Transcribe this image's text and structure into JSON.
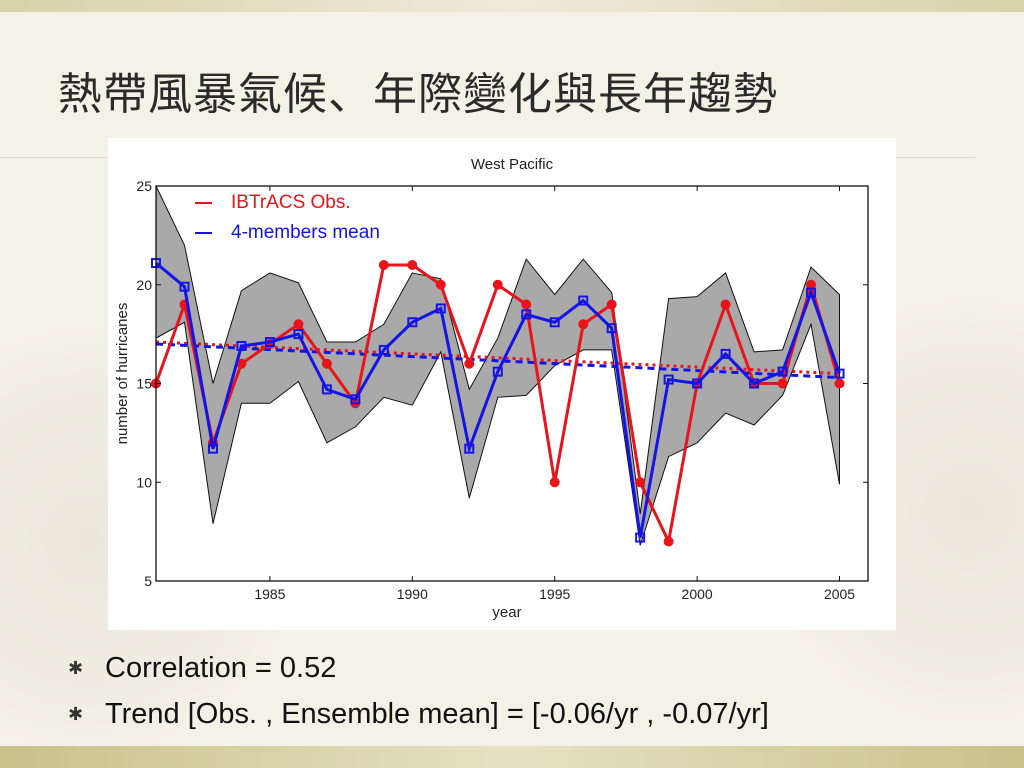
{
  "slide": {
    "title": "熱帶風暴氣候、年際變化與長年趨勢",
    "bullets": [
      "Correlation = 0.52",
      "Trend [Obs. , Ensemble mean] = [-0.06/yr , -0.07/yr]"
    ],
    "bullet_icon": "asterisk-icon"
  },
  "chart_data": {
    "type": "line",
    "title": "West Pacific",
    "xlabel": "year",
    "ylabel": "number of hurricanes",
    "xlim": [
      1981,
      2006
    ],
    "ylim": [
      5,
      25
    ],
    "xticks": [
      1985,
      1990,
      1995,
      2000,
      2005
    ],
    "yticks": [
      5,
      10,
      15,
      20,
      25
    ],
    "legend_placement": "top-left",
    "grid": false,
    "x": [
      1981,
      1982,
      1983,
      1984,
      1985,
      1986,
      1987,
      1988,
      1989,
      1990,
      1991,
      1992,
      1993,
      1994,
      1995,
      1996,
      1997,
      1998,
      1999,
      2000,
      2001,
      2002,
      2003,
      2004,
      2005
    ],
    "series": [
      {
        "name": "IBTrACS Obs.",
        "color": "#e8141b",
        "marker": "circle",
        "values": [
          15,
          19,
          12,
          16,
          17,
          18,
          16,
          14,
          21,
          21,
          20,
          16,
          20,
          19,
          10,
          18,
          19,
          10,
          7,
          15,
          19,
          15,
          15,
          20,
          15
        ]
      },
      {
        "name": "4-members mean",
        "color": "#1414e6",
        "marker": "square",
        "values": [
          21.1,
          19.9,
          11.7,
          16.9,
          17.1,
          17.5,
          14.7,
          14.2,
          16.7,
          18.1,
          18.8,
          11.7,
          15.6,
          18.5,
          18.1,
          19.2,
          17.8,
          7.2,
          15.2,
          15.0,
          16.5,
          15.0,
          15.6,
          19.6,
          15.5
        ]
      }
    ],
    "spread_band": {
      "color": "#a9a9a9",
      "upper": [
        25.0,
        22.0,
        15.0,
        19.7,
        20.6,
        20.1,
        17.1,
        17.1,
        18.0,
        20.6,
        20.3,
        14.7,
        17.3,
        21.3,
        19.5,
        21.3,
        19.6,
        8.4,
        19.3,
        19.4,
        20.6,
        16.6,
        16.7,
        20.9,
        19.5
      ],
      "lower": [
        17.3,
        18.1,
        7.9,
        14.0,
        14.0,
        15.1,
        12.0,
        12.8,
        14.3,
        13.9,
        16.6,
        9.2,
        14.3,
        14.4,
        15.9,
        16.7,
        16.7,
        6.8,
        11.3,
        12.0,
        13.5,
        12.9,
        14.4,
        18.0,
        9.9
      ]
    },
    "trend_lines": [
      {
        "series": "IBTrACS Obs.",
        "color": "#e8141b",
        "style": "dotted",
        "start": [
          1981,
          17.1
        ],
        "end": [
          2005,
          15.5
        ]
      },
      {
        "series": "4-members mean",
        "color": "#1414e6",
        "style": "dashed",
        "start": [
          1981,
          17.0
        ],
        "end": [
          2005,
          15.3
        ]
      }
    ]
  }
}
